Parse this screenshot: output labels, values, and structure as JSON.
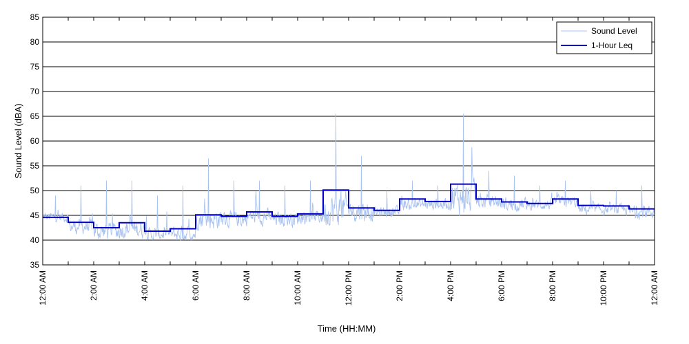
{
  "chart_data": {
    "type": "line",
    "title": "",
    "xlabel": "Time (HH:MM)",
    "ylabel": "Sound Level (dBA)",
    "ylim": [
      35,
      85
    ],
    "yticks": [
      35,
      40,
      45,
      50,
      55,
      60,
      65,
      70,
      75,
      80,
      85
    ],
    "xlim_hours": [
      0,
      24
    ],
    "xticks": [
      {
        "hour": 0,
        "label": "12:00 AM"
      },
      {
        "hour": 2,
        "label": "2:00 AM"
      },
      {
        "hour": 4,
        "label": "4:00 AM"
      },
      {
        "hour": 6,
        "label": "6:00 AM"
      },
      {
        "hour": 8,
        "label": "8:00 AM"
      },
      {
        "hour": 10,
        "label": "10:00 AM"
      },
      {
        "hour": 12,
        "label": "12:00 PM"
      },
      {
        "hour": 14,
        "label": "2:00 PM"
      },
      {
        "hour": 16,
        "label": "4:00 PM"
      },
      {
        "hour": 18,
        "label": "6:00 PM"
      },
      {
        "hour": 20,
        "label": "8:00 PM"
      },
      {
        "hour": 22,
        "label": "10:00 PM"
      },
      {
        "hour": 24,
        "label": "12:00 AM"
      }
    ],
    "grid": "horizontal",
    "legend_position": "top-right",
    "series": [
      {
        "name": "Sound Level",
        "color": "#a9c3f0",
        "style": "thin-line",
        "hourly_profile": [
          {
            "hour": 0,
            "base": 44.5,
            "min": 42,
            "max": 49
          },
          {
            "hour": 1,
            "base": 42.5,
            "min": 40.5,
            "max": 51
          },
          {
            "hour": 2,
            "base": 41.5,
            "min": 40,
            "max": 52
          },
          {
            "hour": 3,
            "base": 42,
            "min": 40,
            "max": 52
          },
          {
            "hour": 4,
            "base": 41,
            "min": 40,
            "max": 49
          },
          {
            "hour": 5,
            "base": 41,
            "min": 40,
            "max": 51
          },
          {
            "hour": 6,
            "base": 44,
            "min": 42,
            "max": 56.5
          },
          {
            "hour": 7,
            "base": 44,
            "min": 41.5,
            "max": 52
          },
          {
            "hour": 8,
            "base": 44.5,
            "min": 41.5,
            "max": 52
          },
          {
            "hour": 9,
            "base": 44,
            "min": 41,
            "max": 51
          },
          {
            "hour": 10,
            "base": 44.5,
            "min": 42,
            "max": 52
          },
          {
            "hour": 11,
            "base": 45.5,
            "min": 43,
            "max": 65.5
          },
          {
            "hour": 12,
            "base": 45.5,
            "min": 43,
            "max": 57
          },
          {
            "hour": 13,
            "base": 45.5,
            "min": 43,
            "max": 50
          },
          {
            "hour": 14,
            "base": 47,
            "min": 44,
            "max": 52
          },
          {
            "hour": 15,
            "base": 47,
            "min": 44,
            "max": 51
          },
          {
            "hour": 16,
            "base": 48,
            "min": 44,
            "max": 65.5
          },
          {
            "hour": 17,
            "base": 47.5,
            "min": 44,
            "max": 54
          },
          {
            "hour": 18,
            "base": 47,
            "min": 44,
            "max": 53
          },
          {
            "hour": 19,
            "base": 47,
            "min": 44,
            "max": 51
          },
          {
            "hour": 20,
            "base": 47.5,
            "min": 44,
            "max": 52
          },
          {
            "hour": 21,
            "base": 46,
            "min": 43,
            "max": 50
          },
          {
            "hour": 22,
            "base": 46,
            "min": 43,
            "max": 50
          },
          {
            "hour": 23,
            "base": 45.5,
            "min": 42,
            "max": 51
          }
        ]
      },
      {
        "name": "1-Hour Leq",
        "color": "#0000cc",
        "style": "step",
        "values": [
          44.6,
          43.6,
          42.5,
          43.5,
          41.8,
          42.3,
          45.1,
          44.8,
          45.7,
          44.8,
          45.3,
          50.1,
          46.5,
          46.0,
          48.3,
          47.8,
          51.3,
          48.3,
          47.7,
          47.4,
          48.3,
          47.0,
          46.9,
          46.3
        ]
      }
    ]
  }
}
